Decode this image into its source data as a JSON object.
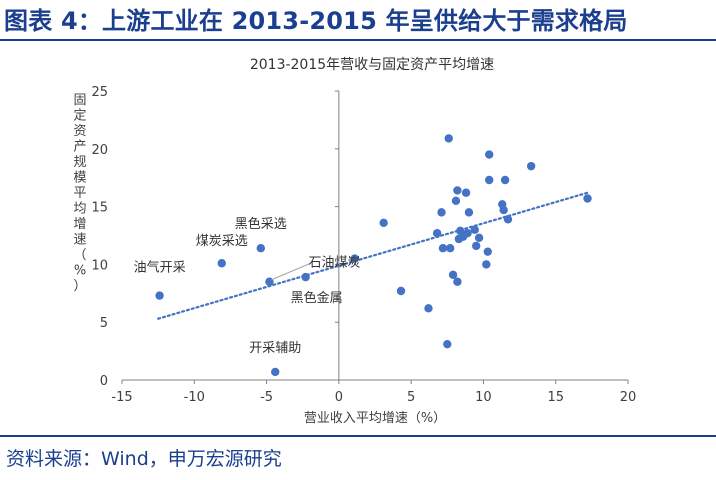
{
  "figure": {
    "title": "图表 4：上游工业在 2013-2015 年呈供给大于需求格局",
    "source": "资料来源：Wind，申万宏源研究"
  },
  "colors": {
    "brand": "#1b3f8f",
    "point": "#4472c4",
    "trendline": "#4472c4",
    "axis": "#808080",
    "text": "#404040"
  },
  "chart_data": {
    "type": "scatter",
    "title": "2013-2015年营收与固定资产平均增速",
    "xlabel": "营业收入平均增速（%）",
    "ylabel": "固定资产规模平均增速（%）",
    "xlim": [
      -15,
      20
    ],
    "ylim": [
      0,
      25
    ],
    "xticks": [
      "-15",
      "-10",
      "-5",
      "0",
      "5",
      "10",
      "15",
      "20"
    ],
    "yticks": [
      "0",
      "5",
      "10",
      "15",
      "20",
      "25"
    ],
    "grid": false,
    "legend": false,
    "points": [
      [
        -12.4,
        7.3
      ],
      [
        -8.1,
        10.1
      ],
      [
        -5.4,
        11.4
      ],
      [
        -4.8,
        8.5
      ],
      [
        -2.3,
        8.9
      ],
      [
        -4.4,
        0.7
      ],
      [
        1.1,
        10.5
      ],
      [
        3.1,
        13.6
      ],
      [
        4.3,
        7.7
      ],
      [
        6.2,
        6.2
      ],
      [
        6.8,
        12.7
      ],
      [
        7.1,
        14.5
      ],
      [
        7.2,
        11.4
      ],
      [
        7.5,
        3.1
      ],
      [
        7.6,
        20.9
      ],
      [
        7.7,
        11.4
      ],
      [
        7.9,
        9.1
      ],
      [
        8.1,
        15.5
      ],
      [
        8.2,
        16.4
      ],
      [
        8.2,
        8.5
      ],
      [
        8.4,
        12.9
      ],
      [
        8.3,
        12.2
      ],
      [
        8.6,
        12.4
      ],
      [
        8.8,
        16.2
      ],
      [
        8.9,
        12.7
      ],
      [
        9.0,
        14.5
      ],
      [
        9.4,
        13.0
      ],
      [
        9.5,
        11.6
      ],
      [
        9.7,
        12.3
      ],
      [
        10.2,
        10.0
      ],
      [
        10.3,
        11.1
      ],
      [
        10.4,
        19.5
      ],
      [
        10.4,
        17.3
      ],
      [
        11.3,
        15.2
      ],
      [
        11.4,
        14.7
      ],
      [
        11.5,
        17.3
      ],
      [
        11.7,
        13.9
      ],
      [
        13.3,
        18.5
      ],
      [
        17.2,
        15.7
      ]
    ],
    "trendline": {
      "style": "dotted",
      "x": [
        -12.5,
        17.2
      ],
      "y": [
        5.3,
        16.2
      ]
    },
    "annotations": [
      {
        "text": "油气开采",
        "x": -12.4,
        "y": 7.3
      },
      {
        "text": "煤炭采选",
        "x": -8.1,
        "y": 10.1
      },
      {
        "text": "黑色采选",
        "x": -5.4,
        "y": 11.4
      },
      {
        "text": "石油煤炭",
        "x": -4.8,
        "y": 8.5
      },
      {
        "text": "黑色金属",
        "x": -2.3,
        "y": 8.9
      },
      {
        "text": "开采辅助",
        "x": -4.4,
        "y": 0.7
      }
    ]
  }
}
